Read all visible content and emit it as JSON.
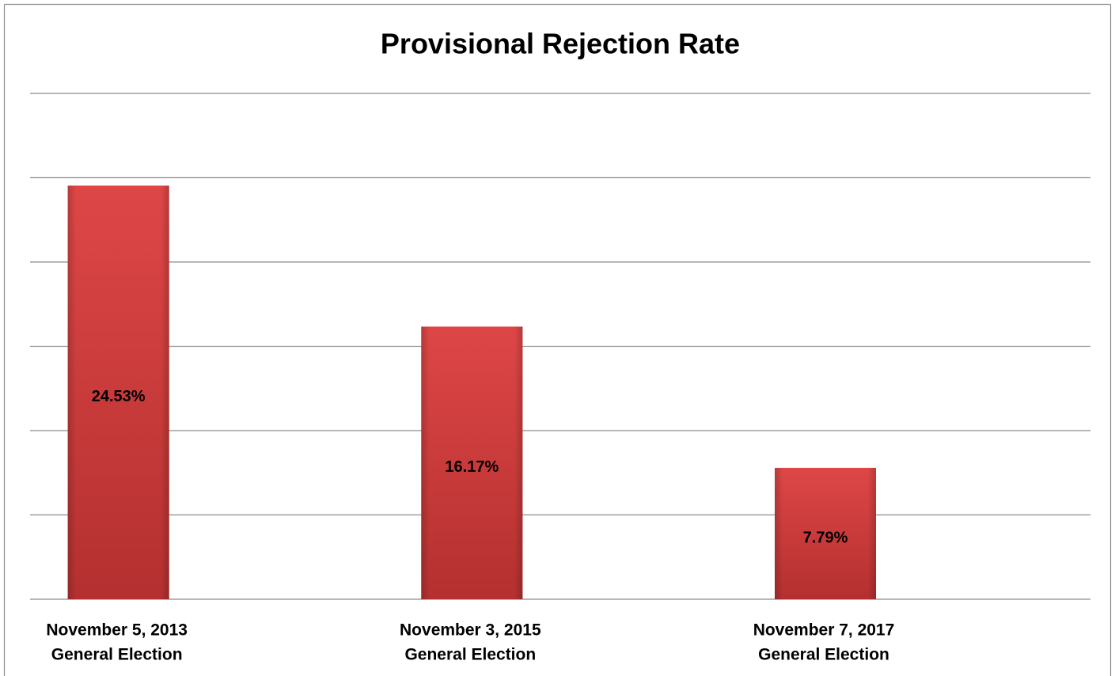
{
  "chart_data": {
    "type": "bar",
    "title": "Provisional Rejection Rate",
    "categories": [
      [
        "November 5, 2013",
        "General Election"
      ],
      [
        "November 3, 2015",
        "General Election"
      ],
      [
        "November 7, 2017",
        "General Election"
      ]
    ],
    "values": [
      24.53,
      16.17,
      7.79
    ],
    "value_labels": [
      "24.53%",
      "16.17%",
      "7.79%"
    ],
    "color": "#d94141",
    "ylim": [
      0,
      30
    ],
    "yticks": [
      0,
      5,
      10,
      15,
      20,
      25,
      30
    ],
    "ytick_labels": false,
    "grid": true
  }
}
